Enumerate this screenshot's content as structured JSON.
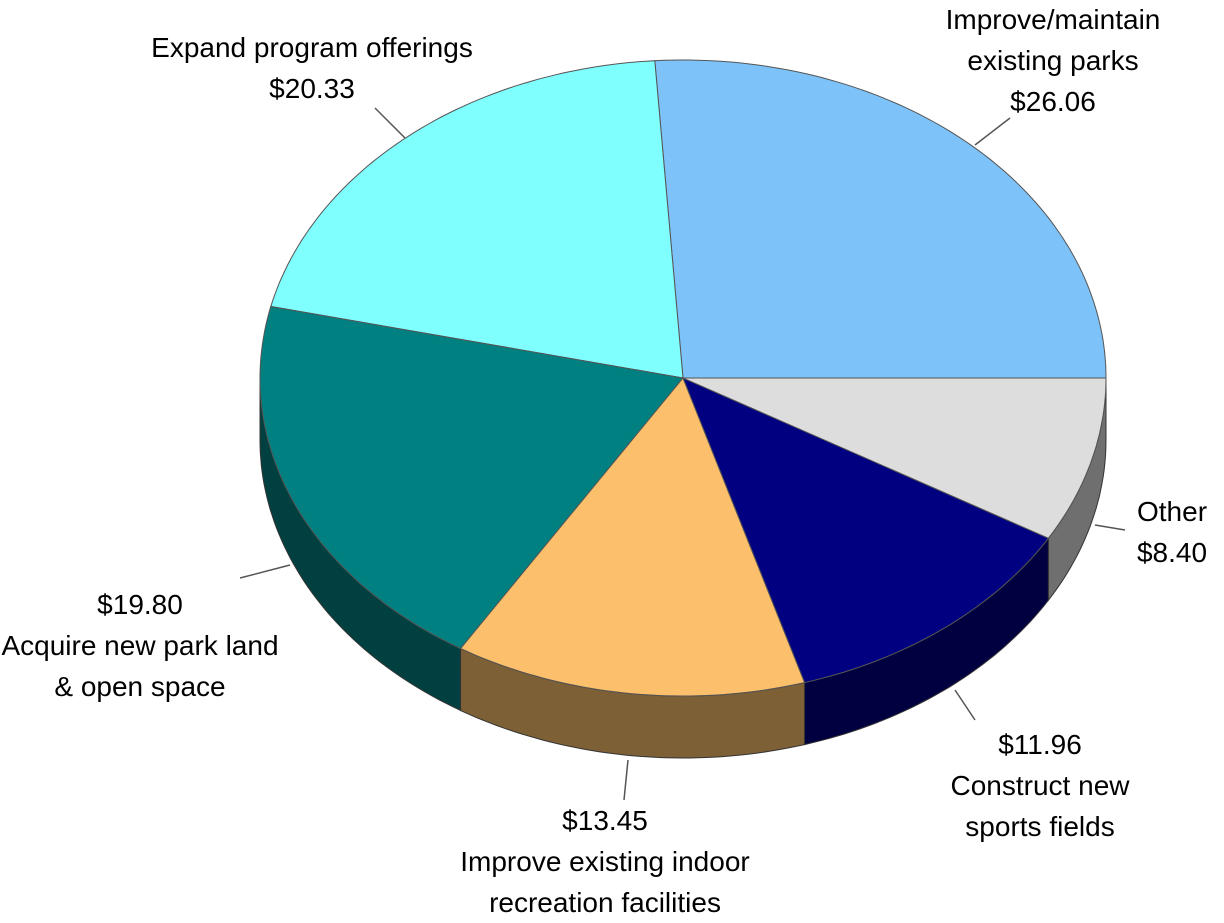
{
  "chart_data": {
    "type": "pie3d",
    "categories": [
      "Improve/maintain existing parks",
      "Expand program offerings",
      "Acquire new park land & open space",
      "Improve existing indoor recreation facilities",
      "Construct new sports fields",
      "Other"
    ],
    "values": [
      26.06,
      20.33,
      19.8,
      13.45,
      11.96,
      8.4
    ],
    "value_labels": [
      "$26.06",
      "$20.33",
      "$19.80",
      "$13.45",
      "$11.96",
      "$8.40"
    ],
    "colors": [
      "#7dc3f9",
      "#80ffff",
      "#008080",
      "#fcbf6c",
      "#000080",
      "#dddddd"
    ]
  }
}
